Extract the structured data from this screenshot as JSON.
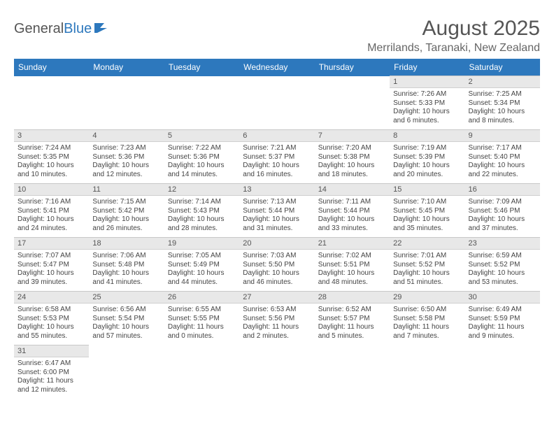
{
  "brand": {
    "name_a": "General",
    "name_b": "Blue"
  },
  "title": {
    "month": "August 2025",
    "location": "Merrilands, Taranaki, New Zealand"
  },
  "colors": {
    "header_bg": "#2d78bd",
    "header_fg": "#ffffff",
    "daynum_bg": "#e8e8e8",
    "border": "#d0d0d0",
    "text": "#444444"
  },
  "typography": {
    "month_title_pt": 30,
    "location_pt": 16,
    "day_header_pt": 12,
    "daynum_pt": 11,
    "cell_pt": 10
  },
  "weekdays": [
    "Sunday",
    "Monday",
    "Tuesday",
    "Wednesday",
    "Thursday",
    "Friday",
    "Saturday"
  ],
  "weeks": [
    [
      null,
      null,
      null,
      null,
      null,
      {
        "n": "1",
        "sunrise": "Sunrise: 7:26 AM",
        "sunset": "Sunset: 5:33 PM",
        "daylight1": "Daylight: 10 hours",
        "daylight2": "and 6 minutes."
      },
      {
        "n": "2",
        "sunrise": "Sunrise: 7:25 AM",
        "sunset": "Sunset: 5:34 PM",
        "daylight1": "Daylight: 10 hours",
        "daylight2": "and 8 minutes."
      }
    ],
    [
      {
        "n": "3",
        "sunrise": "Sunrise: 7:24 AM",
        "sunset": "Sunset: 5:35 PM",
        "daylight1": "Daylight: 10 hours",
        "daylight2": "and 10 minutes."
      },
      {
        "n": "4",
        "sunrise": "Sunrise: 7:23 AM",
        "sunset": "Sunset: 5:36 PM",
        "daylight1": "Daylight: 10 hours",
        "daylight2": "and 12 minutes."
      },
      {
        "n": "5",
        "sunrise": "Sunrise: 7:22 AM",
        "sunset": "Sunset: 5:36 PM",
        "daylight1": "Daylight: 10 hours",
        "daylight2": "and 14 minutes."
      },
      {
        "n": "6",
        "sunrise": "Sunrise: 7:21 AM",
        "sunset": "Sunset: 5:37 PM",
        "daylight1": "Daylight: 10 hours",
        "daylight2": "and 16 minutes."
      },
      {
        "n": "7",
        "sunrise": "Sunrise: 7:20 AM",
        "sunset": "Sunset: 5:38 PM",
        "daylight1": "Daylight: 10 hours",
        "daylight2": "and 18 minutes."
      },
      {
        "n": "8",
        "sunrise": "Sunrise: 7:19 AM",
        "sunset": "Sunset: 5:39 PM",
        "daylight1": "Daylight: 10 hours",
        "daylight2": "and 20 minutes."
      },
      {
        "n": "9",
        "sunrise": "Sunrise: 7:17 AM",
        "sunset": "Sunset: 5:40 PM",
        "daylight1": "Daylight: 10 hours",
        "daylight2": "and 22 minutes."
      }
    ],
    [
      {
        "n": "10",
        "sunrise": "Sunrise: 7:16 AM",
        "sunset": "Sunset: 5:41 PM",
        "daylight1": "Daylight: 10 hours",
        "daylight2": "and 24 minutes."
      },
      {
        "n": "11",
        "sunrise": "Sunrise: 7:15 AM",
        "sunset": "Sunset: 5:42 PM",
        "daylight1": "Daylight: 10 hours",
        "daylight2": "and 26 minutes."
      },
      {
        "n": "12",
        "sunrise": "Sunrise: 7:14 AM",
        "sunset": "Sunset: 5:43 PM",
        "daylight1": "Daylight: 10 hours",
        "daylight2": "and 28 minutes."
      },
      {
        "n": "13",
        "sunrise": "Sunrise: 7:13 AM",
        "sunset": "Sunset: 5:44 PM",
        "daylight1": "Daylight: 10 hours",
        "daylight2": "and 31 minutes."
      },
      {
        "n": "14",
        "sunrise": "Sunrise: 7:11 AM",
        "sunset": "Sunset: 5:44 PM",
        "daylight1": "Daylight: 10 hours",
        "daylight2": "and 33 minutes."
      },
      {
        "n": "15",
        "sunrise": "Sunrise: 7:10 AM",
        "sunset": "Sunset: 5:45 PM",
        "daylight1": "Daylight: 10 hours",
        "daylight2": "and 35 minutes."
      },
      {
        "n": "16",
        "sunrise": "Sunrise: 7:09 AM",
        "sunset": "Sunset: 5:46 PM",
        "daylight1": "Daylight: 10 hours",
        "daylight2": "and 37 minutes."
      }
    ],
    [
      {
        "n": "17",
        "sunrise": "Sunrise: 7:07 AM",
        "sunset": "Sunset: 5:47 PM",
        "daylight1": "Daylight: 10 hours",
        "daylight2": "and 39 minutes."
      },
      {
        "n": "18",
        "sunrise": "Sunrise: 7:06 AM",
        "sunset": "Sunset: 5:48 PM",
        "daylight1": "Daylight: 10 hours",
        "daylight2": "and 41 minutes."
      },
      {
        "n": "19",
        "sunrise": "Sunrise: 7:05 AM",
        "sunset": "Sunset: 5:49 PM",
        "daylight1": "Daylight: 10 hours",
        "daylight2": "and 44 minutes."
      },
      {
        "n": "20",
        "sunrise": "Sunrise: 7:03 AM",
        "sunset": "Sunset: 5:50 PM",
        "daylight1": "Daylight: 10 hours",
        "daylight2": "and 46 minutes."
      },
      {
        "n": "21",
        "sunrise": "Sunrise: 7:02 AM",
        "sunset": "Sunset: 5:51 PM",
        "daylight1": "Daylight: 10 hours",
        "daylight2": "and 48 minutes."
      },
      {
        "n": "22",
        "sunrise": "Sunrise: 7:01 AM",
        "sunset": "Sunset: 5:52 PM",
        "daylight1": "Daylight: 10 hours",
        "daylight2": "and 51 minutes."
      },
      {
        "n": "23",
        "sunrise": "Sunrise: 6:59 AM",
        "sunset": "Sunset: 5:52 PM",
        "daylight1": "Daylight: 10 hours",
        "daylight2": "and 53 minutes."
      }
    ],
    [
      {
        "n": "24",
        "sunrise": "Sunrise: 6:58 AM",
        "sunset": "Sunset: 5:53 PM",
        "daylight1": "Daylight: 10 hours",
        "daylight2": "and 55 minutes."
      },
      {
        "n": "25",
        "sunrise": "Sunrise: 6:56 AM",
        "sunset": "Sunset: 5:54 PM",
        "daylight1": "Daylight: 10 hours",
        "daylight2": "and 57 minutes."
      },
      {
        "n": "26",
        "sunrise": "Sunrise: 6:55 AM",
        "sunset": "Sunset: 5:55 PM",
        "daylight1": "Daylight: 11 hours",
        "daylight2": "and 0 minutes."
      },
      {
        "n": "27",
        "sunrise": "Sunrise: 6:53 AM",
        "sunset": "Sunset: 5:56 PM",
        "daylight1": "Daylight: 11 hours",
        "daylight2": "and 2 minutes."
      },
      {
        "n": "28",
        "sunrise": "Sunrise: 6:52 AM",
        "sunset": "Sunset: 5:57 PM",
        "daylight1": "Daylight: 11 hours",
        "daylight2": "and 5 minutes."
      },
      {
        "n": "29",
        "sunrise": "Sunrise: 6:50 AM",
        "sunset": "Sunset: 5:58 PM",
        "daylight1": "Daylight: 11 hours",
        "daylight2": "and 7 minutes."
      },
      {
        "n": "30",
        "sunrise": "Sunrise: 6:49 AM",
        "sunset": "Sunset: 5:59 PM",
        "daylight1": "Daylight: 11 hours",
        "daylight2": "and 9 minutes."
      }
    ],
    [
      {
        "n": "31",
        "sunrise": "Sunrise: 6:47 AM",
        "sunset": "Sunset: 6:00 PM",
        "daylight1": "Daylight: 11 hours",
        "daylight2": "and 12 minutes."
      },
      null,
      null,
      null,
      null,
      null,
      null
    ]
  ]
}
